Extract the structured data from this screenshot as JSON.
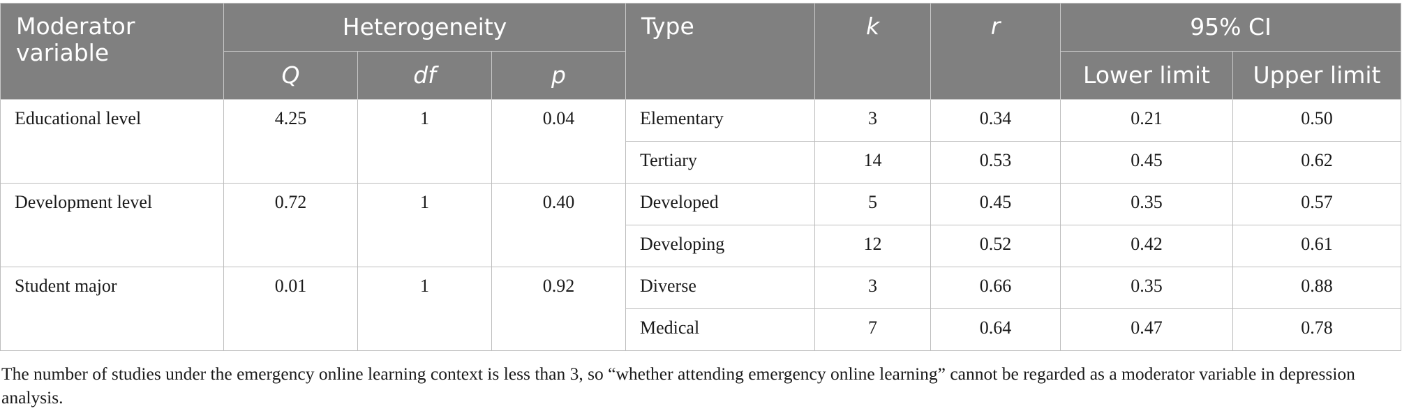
{
  "table": {
    "headers": {
      "moderator": "Moderator variable",
      "heterogeneity": "Heterogeneity",
      "q": "Q",
      "df": "df",
      "p": "p",
      "type": "Type",
      "k": "k",
      "r": "r",
      "ci": "95% CI",
      "lower": "Lower limit",
      "upper": "Upper limit"
    },
    "groups": [
      {
        "moderator": "Educational level",
        "q": "4.25",
        "df": "1",
        "p": "0.04",
        "rows": [
          {
            "type": "Elementary",
            "k": "3",
            "r": "0.34",
            "lower": "0.21",
            "upper": "0.50"
          },
          {
            "type": "Tertiary",
            "k": "14",
            "r": "0.53",
            "lower": "0.45",
            "upper": "0.62"
          }
        ]
      },
      {
        "moderator": "Development level",
        "q": "0.72",
        "df": "1",
        "p": "0.40",
        "rows": [
          {
            "type": "Developed",
            "k": "5",
            "r": "0.45",
            "lower": "0.35",
            "upper": "0.57"
          },
          {
            "type": "Developing",
            "k": "12",
            "r": "0.52",
            "lower": "0.42",
            "upper": "0.61"
          }
        ]
      },
      {
        "moderator": "Student major",
        "q": "0.01",
        "df": "1",
        "p": "0.92",
        "rows": [
          {
            "type": "Diverse",
            "k": "3",
            "r": "0.66",
            "lower": "0.35",
            "upper": "0.88"
          },
          {
            "type": "Medical",
            "k": "7",
            "r": "0.64",
            "lower": "0.47",
            "upper": "0.78"
          }
        ]
      }
    ]
  },
  "footnote": "The number of studies under the emergency online learning context is less than 3, so “whether attending emergency online learning” cannot be regarded as a moderator variable in depression analysis.",
  "colors": {
    "header_bg": "#808080",
    "header_text": "#ffffff",
    "border": "#bdbdbd"
  }
}
